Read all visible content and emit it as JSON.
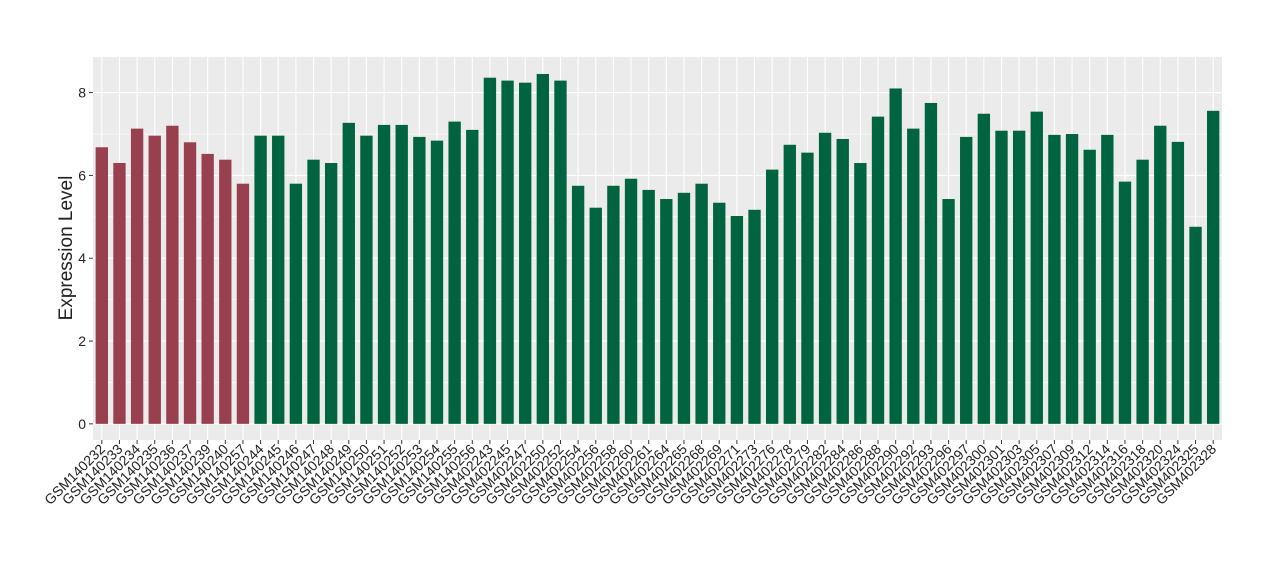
{
  "chart_data": {
    "type": "bar",
    "y_label": "Expression Level",
    "categories": [
      "GSM140232",
      "GSM140233",
      "GSM140234",
      "GSM140235",
      "GSM140236",
      "GSM140237",
      "GSM140239",
      "GSM140240",
      "GSM140257",
      "GSM140244",
      "GSM140245",
      "GSM140246",
      "GSM140247",
      "GSM140248",
      "GSM140249",
      "GSM140250",
      "GSM140251",
      "GSM140252",
      "GSM140253",
      "GSM140254",
      "GSM140255",
      "GSM140256",
      "GSM402243",
      "GSM402245",
      "GSM402247",
      "GSM402250",
      "GSM402252",
      "GSM402254",
      "GSM402256",
      "GSM402258",
      "GSM402260",
      "GSM402261",
      "GSM402264",
      "GSM402265",
      "GSM402268",
      "GSM402269",
      "GSM402271",
      "GSM402273",
      "GSM402276",
      "GSM402278",
      "GSM402279",
      "GSM402282",
      "GSM402284",
      "GSM402286",
      "GSM402288",
      "GSM402290",
      "GSM402292",
      "GSM402293",
      "GSM402296",
      "GSM402297",
      "GSM402300",
      "GSM402301",
      "GSM402303",
      "GSM402305",
      "GSM402307",
      "GSM402309",
      "GSM402312",
      "GSM402314",
      "GSM402316",
      "GSM402318",
      "GSM402320",
      "GSM402324",
      "GSM402325",
      "GSM402328"
    ],
    "values": [
      6.68,
      6.3,
      7.13,
      6.96,
      7.2,
      6.8,
      6.52,
      6.38,
      5.8,
      6.96,
      6.96,
      5.8,
      6.38,
      6.3,
      7.27,
      6.96,
      7.22,
      7.22,
      6.93,
      6.84,
      7.3,
      7.1,
      8.36,
      8.29,
      8.24,
      8.45,
      8.29,
      5.75,
      5.22,
      5.75,
      5.92,
      5.65,
      5.43,
      5.58,
      5.8,
      5.34,
      5.02,
      5.17,
      6.14,
      6.74,
      6.55,
      7.03,
      6.88,
      6.3,
      7.42,
      8.1,
      7.13,
      7.75,
      5.43,
      6.93,
      7.49,
      7.08,
      7.08,
      7.54,
      6.98,
      7.0,
      6.62,
      6.98,
      5.85,
      6.38,
      7.2,
      6.81,
      4.76,
      7.56
    ],
    "colors": [
      "#98404e",
      "#98404e",
      "#98404e",
      "#98404e",
      "#98404e",
      "#98404e",
      "#98404e",
      "#98404e",
      "#98404e",
      "#006440",
      "#006440",
      "#006440",
      "#006440",
      "#006440",
      "#006440",
      "#006440",
      "#006440",
      "#006440",
      "#006440",
      "#006440",
      "#006440",
      "#006440",
      "#006440",
      "#006440",
      "#006440",
      "#006440",
      "#006440",
      "#006440",
      "#006440",
      "#006440",
      "#006440",
      "#006440",
      "#006440",
      "#006440",
      "#006440",
      "#006440",
      "#006440",
      "#006440",
      "#006440",
      "#006440",
      "#006440",
      "#006440",
      "#006440",
      "#006440",
      "#006440",
      "#006440",
      "#006440",
      "#006440",
      "#006440",
      "#006440",
      "#006440",
      "#006440",
      "#006440",
      "#006440",
      "#006440",
      "#006440",
      "#006440",
      "#006440",
      "#006440",
      "#006440",
      "#006440",
      "#006440",
      "#006440",
      "#006440"
    ],
    "ylim": [
      -0.39,
      8.86
    ],
    "yticks": [
      0,
      2,
      4,
      6,
      8
    ],
    "grid": true
  }
}
